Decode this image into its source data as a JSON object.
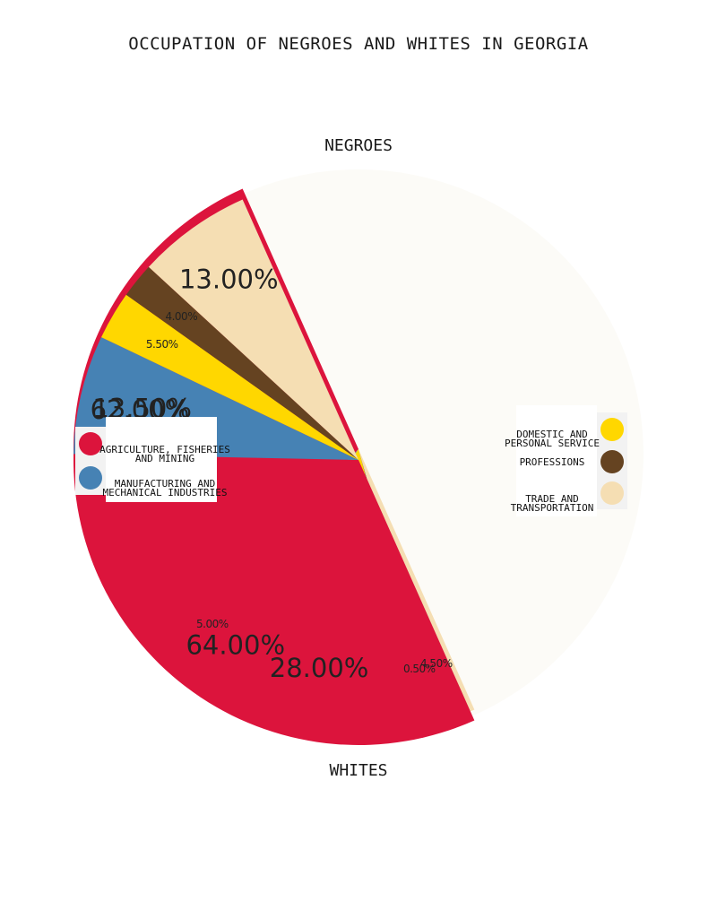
{
  "chart_data": {
    "type": "pie",
    "title": "OCCUPATION OF NEGROES AND WHITES IN GEORGIA",
    "categories": [
      "AGRICULTURE, FISHERIES AND MINING",
      "MANUFACTURING AND MECHANICAL INDUSTRIES",
      "DOMESTIC AND PERSONAL SERVICE",
      "PROFESSIONS",
      "TRADE AND TRANSPORTATION"
    ],
    "colors": [
      "#dc143c",
      "#4682b4",
      "#ffd700",
      "#654321",
      "#f5deb3"
    ],
    "series": [
      {
        "name": "NEGROES",
        "values": [
          62.0,
          5.0,
          28.0,
          0.5,
          4.5
        ],
        "labels": [
          "62.00%",
          "5.00%",
          "28.00%",
          "0.50%",
          "4.50%"
        ]
      },
      {
        "name": "WHITES",
        "values": [
          64.0,
          13.5,
          5.5,
          4.0,
          13.0
        ],
        "labels": [
          "64.00%",
          "13.50%",
          "5.50%",
          "4.00%",
          "13.00%"
        ]
      }
    ],
    "legend_placement": "left-and-right",
    "legend": {
      "left": [
        {
          "label": "AGRICULTURE, FISHERIES\nAND MINING",
          "color": "#dc143c"
        },
        {
          "label": "MANUFACTURING AND\nMECHANICAL INDUSTRIES",
          "color": "#4682b4"
        }
      ],
      "right": [
        {
          "label": "DOMESTIC AND\nPERSONAL SERVICE",
          "color": "#ffd700"
        },
        {
          "label": "PROFESSIONS",
          "color": "#654321"
        },
        {
          "label": "TRADE AND\nTRANSPORTATION",
          "color": "#f5deb3"
        }
      ]
    }
  }
}
